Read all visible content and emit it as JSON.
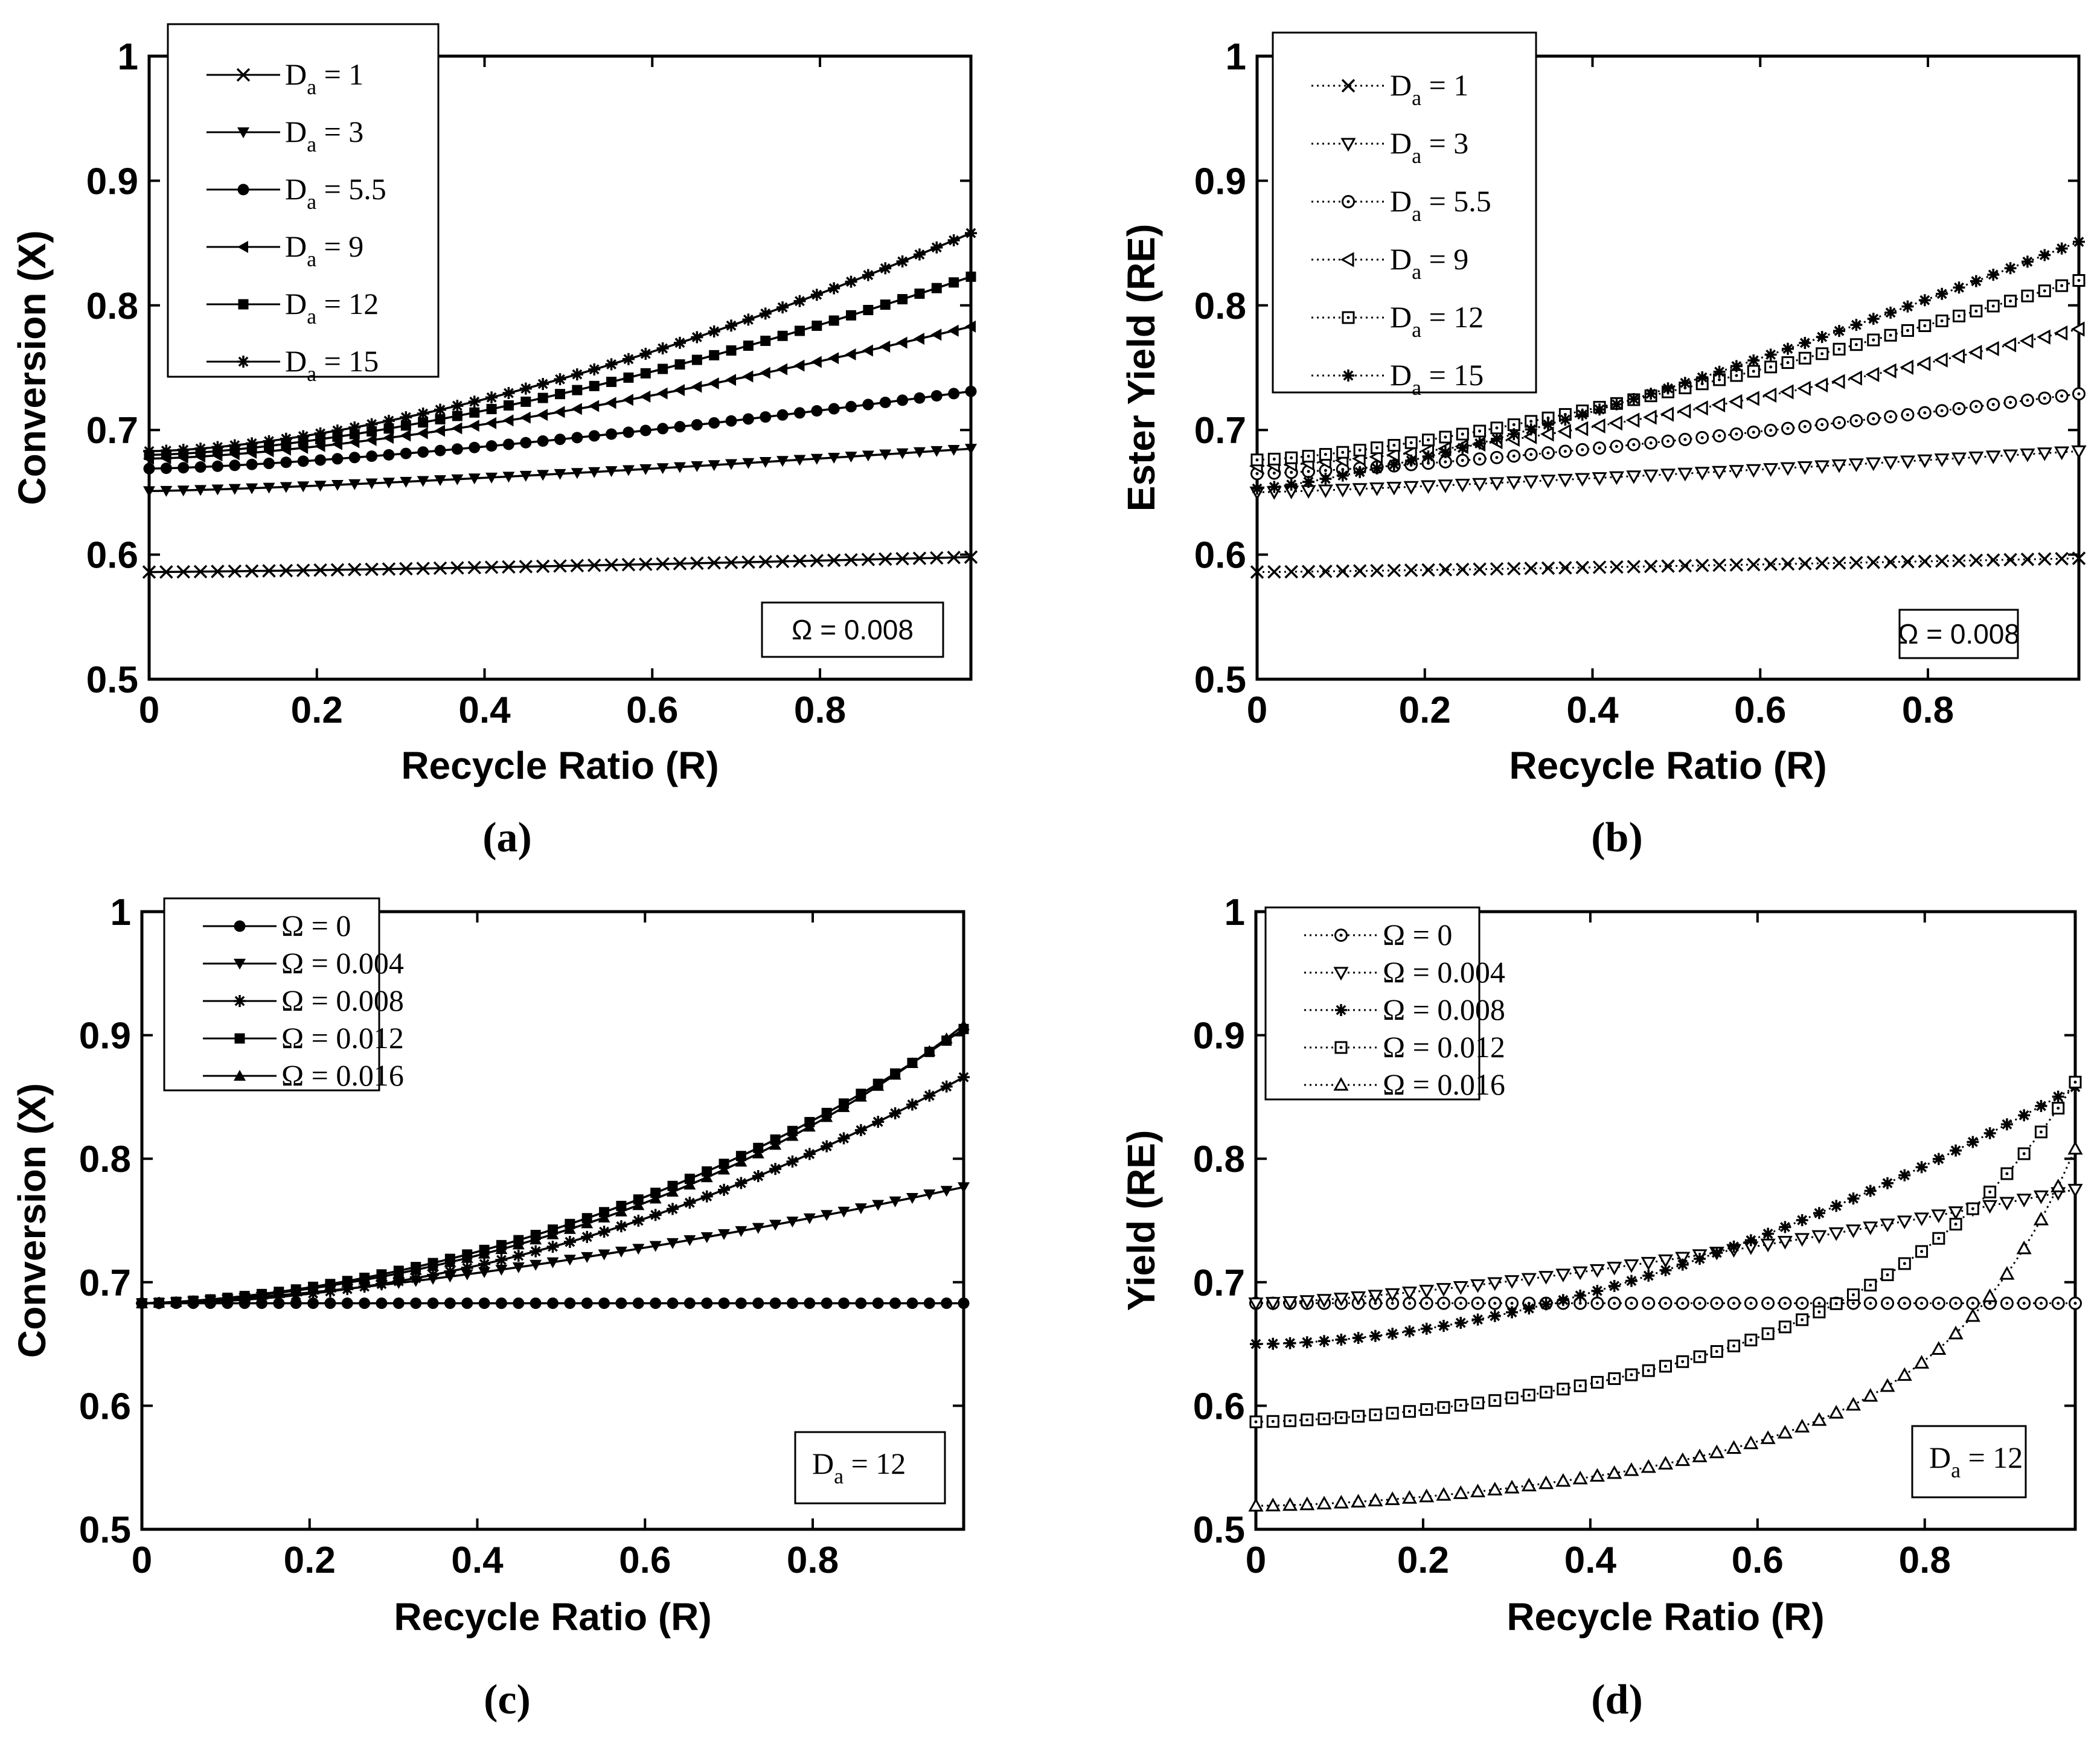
{
  "figure": {
    "captions": [
      "(a)",
      "(b)",
      "(c)",
      "(d)"
    ]
  },
  "chart_data": [
    {
      "panel": "a",
      "type": "line",
      "line_style": "solid",
      "ylabel": "Conversion (X)",
      "xlabel": "Recycle Ratio (R)",
      "xlim": [
        0,
        0.98
      ],
      "ylim": [
        0.5,
        1
      ],
      "xticks": [
        "0",
        "0.2",
        "0.4",
        "0.6",
        "0.8"
      ],
      "yticks": [
        "0.5",
        "0.6",
        "0.7",
        "0.8",
        "0.9",
        "1"
      ],
      "legend_position": "top-left",
      "annotation": {
        "text": "Ω = 0.008"
      },
      "series": [
        {
          "name": "Da = 1",
          "label_main": "D",
          "label_sub": "a",
          "label_rest": " = 1",
          "marker": "x",
          "y0": 0.586,
          "y1": 0.598,
          "curve": 1.3
        },
        {
          "name": "Da = 3",
          "label_main": "D",
          "label_sub": "a",
          "label_rest": " = 3",
          "marker": "tri-down-filled",
          "y0": 0.651,
          "y1": 0.685,
          "curve": 1.3
        },
        {
          "name": "Da = 5.5",
          "label_main": "D",
          "label_sub": "a",
          "label_rest": " = 5.5",
          "marker": "circle-filled",
          "y0": 0.669,
          "y1": 0.731,
          "curve": 1.4
        },
        {
          "name": "Da = 9",
          "label_main": "D",
          "label_sub": "a",
          "label_rest": " = 9",
          "marker": "tri-left-filled",
          "y0": 0.677,
          "y1": 0.783,
          "curve": 1.5
        },
        {
          "name": "Da = 12",
          "label_main": "D",
          "label_sub": "a",
          "label_rest": " = 12",
          "marker": "square-filled",
          "y0": 0.68,
          "y1": 0.823,
          "curve": 1.55
        },
        {
          "name": "Da = 15",
          "label_main": "D",
          "label_sub": "a",
          "label_rest": " = 15",
          "marker": "asterisk",
          "y0": 0.683,
          "y1": 0.858,
          "curve": 1.6
        }
      ]
    },
    {
      "panel": "b",
      "type": "line",
      "line_style": "dotted",
      "ylabel": "Ester Yield (RE)",
      "xlabel": "Recycle Ratio (R)",
      "xlim": [
        0,
        0.98
      ],
      "ylim": [
        0.5,
        1
      ],
      "xticks": [
        "0",
        "0.2",
        "0.4",
        "0.6",
        "0.8"
      ],
      "yticks": [
        "0.5",
        "0.6",
        "0.7",
        "0.8",
        "0.9",
        "1"
      ],
      "legend_position": "top-left",
      "annotation": {
        "text": "Ω = 0.008"
      },
      "series": [
        {
          "name": "Da = 1",
          "label_main": "D",
          "label_sub": "a",
          "label_rest": " = 1",
          "marker": "x",
          "y0": 0.586,
          "y1": 0.597,
          "curve": 1.2
        },
        {
          "name": "Da = 3",
          "label_main": "D",
          "label_sub": "a",
          "label_rest": " = 3",
          "marker": "tri-down-open",
          "y0": 0.65,
          "y1": 0.683,
          "curve": 1.2
        },
        {
          "name": "Da = 5.5",
          "label_main": "D",
          "label_sub": "a",
          "label_rest": " = 5.5",
          "marker": "circle-dot",
          "y0": 0.665,
          "y1": 0.729,
          "curve": 1.3
        },
        {
          "name": "Da = 9",
          "label_main": "D",
          "label_sub": "a",
          "label_rest": " = 9",
          "marker": "tri-left-open",
          "y0": 0.671,
          "y1": 0.781,
          "curve": 1.4
        },
        {
          "name": "Da = 12",
          "label_main": "D",
          "label_sub": "a",
          "label_rest": " = 12",
          "marker": "square-dot",
          "y0": 0.676,
          "y1": 0.82,
          "curve": 1.4
        },
        {
          "name": "Da = 15",
          "label_main": "D",
          "label_sub": "a",
          "label_rest": " = 15",
          "marker": "asterisk",
          "y0": 0.653,
          "y1": 0.851,
          "curve": 1.3
        }
      ]
    },
    {
      "panel": "c",
      "type": "line",
      "line_style": "solid",
      "ylabel": "Conversion (X)",
      "xlabel": "Recycle Ratio (R)",
      "xlim": [
        0,
        0.98
      ],
      "ylim": [
        0.5,
        1
      ],
      "xticks": [
        "0",
        "0.2",
        "0.4",
        "0.6",
        "0.8"
      ],
      "yticks": [
        "0.5",
        "0.6",
        "0.7",
        "0.8",
        "0.9",
        "1"
      ],
      "legend_position": "top-left",
      "annotation": {
        "main": "D",
        "sub": "a",
        "rest": " = 12"
      },
      "series": [
        {
          "name": "Ω = 0",
          "label_main": "Ω = 0",
          "label_sub": "",
          "label_rest": "",
          "marker": "circle-filled",
          "y0": 0.683,
          "y1": 0.683,
          "curve": 1
        },
        {
          "name": "Ω = 0.004",
          "label_main": "Ω = 0.004",
          "label_sub": "",
          "label_rest": "",
          "marker": "tri-down-filled",
          "y0": 0.683,
          "y1": 0.777,
          "curve": 1.5
        },
        {
          "name": "Ω = 0.008",
          "label_main": "Ω = 0.008",
          "label_sub": "",
          "label_rest": "",
          "marker": "asterisk",
          "y0": 0.683,
          "y1": 0.866,
          "curve": 2.0
        },
        {
          "name": "Ω = 0.012",
          "label_main": "Ω = 0.012",
          "label_sub": "",
          "label_rest": "",
          "marker": "square-filled",
          "y0": 0.683,
          "y1": 0.905,
          "base": 0.158,
          "tail": 0.064,
          "k": 2.5,
          "curve": 1.8
        },
        {
          "name": "Ω = 0.016",
          "label_main": "Ω = 0.016",
          "label_sub": "",
          "label_rest": "",
          "marker": "tri-up-filled",
          "y0": 0.683,
          "y1": 0.908,
          "base": 0.14,
          "tail": 0.085,
          "k": 3.0,
          "curve": 1.8
        }
      ]
    },
    {
      "panel": "d",
      "type": "line",
      "line_style": "dotted",
      "ylabel": "Yield (RE)",
      "xlabel": "Recycle Ratio (R)",
      "xlim": [
        0,
        0.98
      ],
      "ylim": [
        0.5,
        1
      ],
      "xticks": [
        "0",
        "0.2",
        "0.4",
        "0.6",
        "0.8"
      ],
      "yticks": [
        "0.5",
        "0.6",
        "0.7",
        "0.8",
        "0.9",
        "1"
      ],
      "legend_position": "top-left",
      "annotation": {
        "main": "D",
        "sub": "a",
        "rest": " = 12"
      },
      "series": [
        {
          "name": "Ω = 0",
          "label_main": "Ω = 0",
          "label_sub": "",
          "label_rest": "",
          "marker": "circle-dot",
          "y0": 0.683,
          "y1": 0.683,
          "curve": 1
        },
        {
          "name": "Ω = 0.004",
          "label_main": "Ω = 0.004",
          "label_sub": "",
          "label_rest": "",
          "marker": "tri-down-open",
          "y0": 0.683,
          "y1": 0.775,
          "curve": 1.4
        },
        {
          "name": "Ω = 0.008",
          "label_main": "Ω = 0.008",
          "label_sub": "",
          "label_rest": "",
          "marker": "asterisk",
          "y0": 0.65,
          "y1": 0.858,
          "curve": 1.8
        },
        {
          "name": "Ω = 0.012",
          "label_main": "Ω = 0.012",
          "label_sub": "",
          "label_rest": "",
          "marker": "square-dot",
          "y0": 0.587,
          "y1": 0.862,
          "base": 0.095,
          "tail": 0.18,
          "k": 5.0,
          "curve": 1.6
        },
        {
          "name": "Ω = 0.016",
          "label_main": "Ω = 0.016",
          "label_sub": "",
          "label_rest": "",
          "marker": "tri-up-open",
          "y0": 0.519,
          "y1": 0.808,
          "base": 0.085,
          "tail": 0.204,
          "k": 7.0,
          "curve": 1.6
        }
      ]
    }
  ]
}
